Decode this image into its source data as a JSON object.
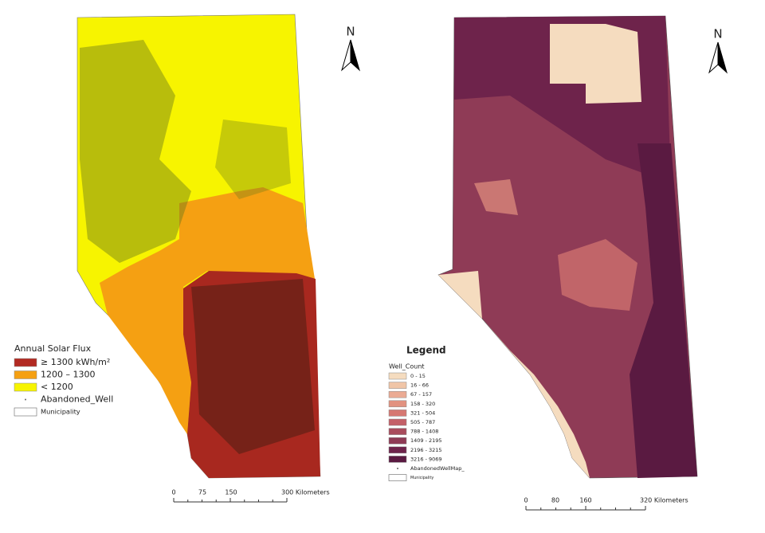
{
  "left_map": {
    "north": "N",
    "legend": {
      "title": "Annual Solar Flux",
      "items": [
        {
          "label": "≥ 1300 kWh/m²",
          "color": "#b22a22"
        },
        {
          "label": "1200 – 1300",
          "color": "#f5a012"
        },
        {
          "label": "< 1200",
          "color": "#f7f400"
        }
      ],
      "points_label": "Abandoned_Well",
      "boundary_label": "Municipality"
    },
    "scale_bar": [
      "0",
      "75",
      "150",
      "300 Kilometers"
    ]
  },
  "right_map": {
    "north": "N",
    "legend": {
      "title": "Legend",
      "subtitle": "Well_Count",
      "items": [
        {
          "label": "0 - 15",
          "color": "#f5dcbf"
        },
        {
          "label": "16 - 66",
          "color": "#f0c5a7"
        },
        {
          "label": "67 - 157",
          "color": "#ebab94"
        },
        {
          "label": "158 - 320",
          "color": "#e29280"
        },
        {
          "label": "321 - 504",
          "color": "#d67872"
        },
        {
          "label": "505 - 787",
          "color": "#c46068"
        },
        {
          "label": "788 - 1408",
          "color": "#a94c5d"
        },
        {
          "label": "1409 - 2195",
          "color": "#8f3b56"
        },
        {
          "label": "2196 - 3215",
          "color": "#6e234b"
        },
        {
          "label": "3216 - 9069",
          "color": "#5a1a41"
        }
      ],
      "points_label": "AbandonedWellMap_",
      "boundary_label": "Municipality"
    },
    "scale_bar": [
      "0",
      "80",
      "160",
      "320 Kilometers"
    ]
  }
}
